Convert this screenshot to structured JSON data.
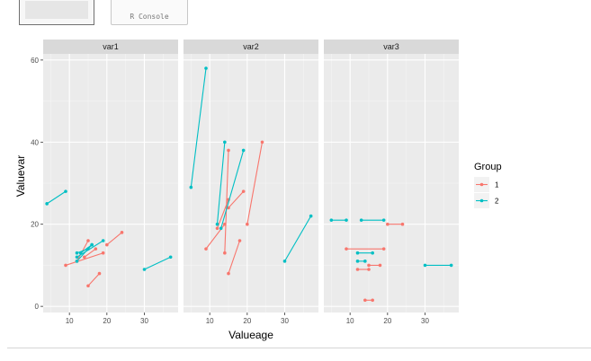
{
  "top_strip": {
    "console_label": "R Console"
  },
  "chart_data": {
    "type": "line",
    "facets": [
      "var1",
      "var2",
      "var3"
    ],
    "xlabel": "Valueage",
    "ylabel": "Valuevar",
    "xlim": [
      3,
      39
    ],
    "ylim": [
      -1.5,
      61.5
    ],
    "x_ticks": [
      10,
      20,
      30
    ],
    "y_ticks": [
      0,
      20,
      40,
      60
    ],
    "legend": {
      "title": "Group",
      "position": "right",
      "entries": [
        "1",
        "2"
      ]
    },
    "series_colors": {
      "1": "#F8766D",
      "2": "#00BFC4"
    },
    "segments": [
      {
        "facet": "var1",
        "group": "1",
        "points": [
          [
            9,
            10
          ],
          [
            19,
            13
          ]
        ]
      },
      {
        "facet": "var1",
        "group": "1",
        "points": [
          [
            12,
            11
          ],
          [
            15,
            16
          ]
        ]
      },
      {
        "facet": "var1",
        "group": "1",
        "points": [
          [
            14,
            12
          ],
          [
            17,
            14
          ]
        ]
      },
      {
        "facet": "var1",
        "group": "1",
        "points": [
          [
            15,
            5
          ],
          [
            18,
            8
          ]
        ]
      },
      {
        "facet": "var1",
        "group": "1",
        "points": [
          [
            20,
            15
          ],
          [
            24,
            18
          ]
        ]
      },
      {
        "facet": "var1",
        "group": "2",
        "points": [
          [
            4,
            25
          ],
          [
            9,
            28
          ]
        ]
      },
      {
        "facet": "var1",
        "group": "2",
        "points": [
          [
            12,
            11
          ],
          [
            16,
            15
          ]
        ]
      },
      {
        "facet": "var1",
        "group": "2",
        "points": [
          [
            12,
            12
          ],
          [
            19,
            16
          ]
        ]
      },
      {
        "facet": "var1",
        "group": "2",
        "points": [
          [
            12,
            13
          ],
          [
            15,
            14
          ]
        ]
      },
      {
        "facet": "var1",
        "group": "2",
        "points": [
          [
            13,
            13
          ],
          [
            16,
            15
          ]
        ]
      },
      {
        "facet": "var1",
        "group": "2",
        "points": [
          [
            30,
            9
          ],
          [
            37,
            12
          ]
        ]
      },
      {
        "facet": "var2",
        "group": "1",
        "points": [
          [
            9,
            14
          ],
          [
            14,
            20
          ]
        ]
      },
      {
        "facet": "var2",
        "group": "1",
        "points": [
          [
            12,
            19
          ],
          [
            15,
            26
          ]
        ]
      },
      {
        "facet": "var2",
        "group": "1",
        "points": [
          [
            14,
            13
          ],
          [
            15,
            38
          ]
        ]
      },
      {
        "facet": "var2",
        "group": "1",
        "points": [
          [
            15,
            8
          ],
          [
            18,
            16
          ]
        ]
      },
      {
        "facet": "var2",
        "group": "1",
        "points": [
          [
            15,
            24
          ],
          [
            19,
            28
          ]
        ]
      },
      {
        "facet": "var2",
        "group": "1",
        "points": [
          [
            20,
            20
          ],
          [
            24,
            40
          ]
        ]
      },
      {
        "facet": "var2",
        "group": "2",
        "points": [
          [
            5,
            29
          ],
          [
            9,
            58
          ]
        ]
      },
      {
        "facet": "var2",
        "group": "2",
        "points": [
          [
            12,
            20
          ],
          [
            14,
            40
          ]
        ]
      },
      {
        "facet": "var2",
        "group": "2",
        "points": [
          [
            13,
            19
          ],
          [
            19,
            38
          ]
        ]
      },
      {
        "facet": "var2",
        "group": "2",
        "points": [
          [
            30,
            11
          ],
          [
            37,
            22
          ]
        ]
      },
      {
        "facet": "var3",
        "group": "1",
        "points": [
          [
            9,
            14
          ],
          [
            19,
            14
          ]
        ]
      },
      {
        "facet": "var3",
        "group": "1",
        "points": [
          [
            12,
            9
          ],
          [
            15,
            9
          ]
        ]
      },
      {
        "facet": "var3",
        "group": "1",
        "points": [
          [
            14,
            1.5
          ],
          [
            16,
            1.5
          ]
        ]
      },
      {
        "facet": "var3",
        "group": "1",
        "points": [
          [
            15,
            10
          ],
          [
            18,
            10
          ]
        ]
      },
      {
        "facet": "var3",
        "group": "1",
        "points": [
          [
            20,
            20
          ],
          [
            24,
            20
          ]
        ]
      },
      {
        "facet": "var3",
        "group": "2",
        "points": [
          [
            5,
            21
          ],
          [
            9,
            21
          ]
        ]
      },
      {
        "facet": "var3",
        "group": "2",
        "points": [
          [
            12,
            11
          ],
          [
            14,
            11
          ]
        ]
      },
      {
        "facet": "var3",
        "group": "2",
        "points": [
          [
            12,
            13
          ],
          [
            16,
            13
          ]
        ]
      },
      {
        "facet": "var3",
        "group": "2",
        "points": [
          [
            13,
            21
          ],
          [
            19,
            21
          ]
        ]
      },
      {
        "facet": "var3",
        "group": "2",
        "points": [
          [
            30,
            10
          ],
          [
            37,
            10
          ]
        ]
      }
    ]
  }
}
